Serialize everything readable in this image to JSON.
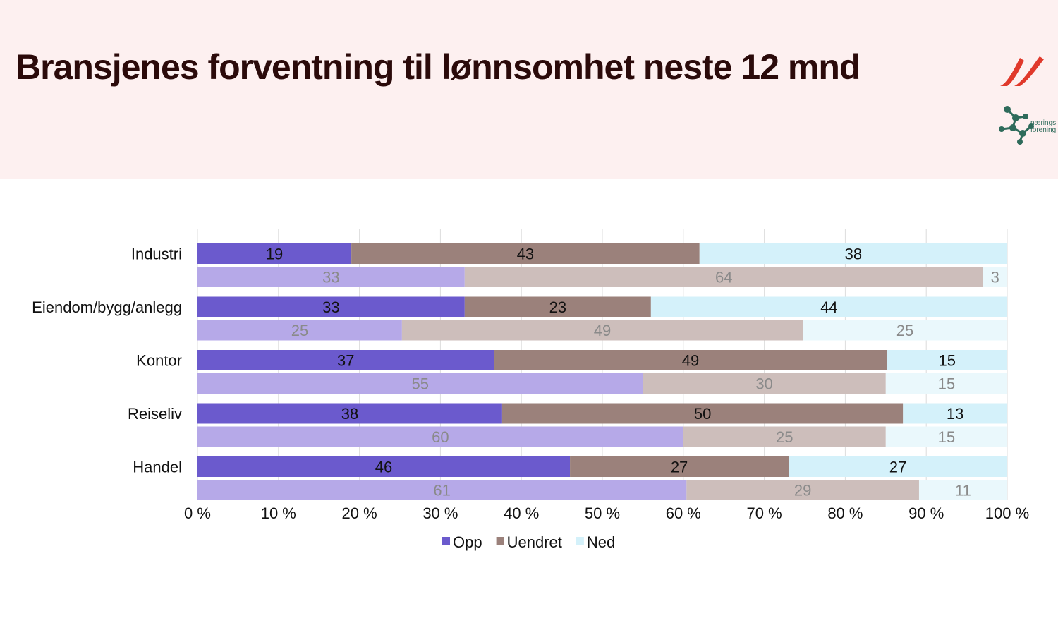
{
  "header": {
    "title": "Bransjenes forventning til lønnsomhet neste 12 mnd",
    "logo_text_line1": "nærings",
    "logo_text_line2": "forening"
  },
  "colors": {
    "opp": "#6b5acd",
    "uendret": "#9b817b",
    "ned": "#d4f1fa",
    "opp_light": "#b6a9e8",
    "uendret_light": "#cdbebb",
    "ned_light": "#eaf8fc",
    "logo_red": "#e0392b",
    "logo_green": "#2e6b5b"
  },
  "chart_data": {
    "type": "bar",
    "orientation": "horizontal",
    "stacked": true,
    "normalized": true,
    "title": "",
    "xlabel": "",
    "ylabel": "",
    "xlim": [
      0,
      100
    ],
    "x_ticks": [
      "0 %",
      "10 %",
      "20 %",
      "30 %",
      "40 %",
      "50 %",
      "60 %",
      "70 %",
      "80 %",
      "90 %",
      "100 %"
    ],
    "grid": true,
    "legend_position": "bottom",
    "categories": [
      "Industri",
      "Eiendom/bygg/anlegg",
      "Kontor",
      "Reiseliv",
      "Handel"
    ],
    "series": [
      {
        "name": "Opp",
        "values": [
          19,
          33,
          37,
          38,
          46
        ],
        "previous": [
          33,
          25,
          55,
          60,
          61
        ]
      },
      {
        "name": "Uendret",
        "values": [
          43,
          23,
          49,
          50,
          27
        ],
        "previous": [
          64,
          49,
          30,
          25,
          29
        ]
      },
      {
        "name": "Ned",
        "values": [
          38,
          44,
          15,
          13,
          27
        ],
        "previous": [
          3,
          25,
          15,
          15,
          11
        ]
      }
    ]
  }
}
